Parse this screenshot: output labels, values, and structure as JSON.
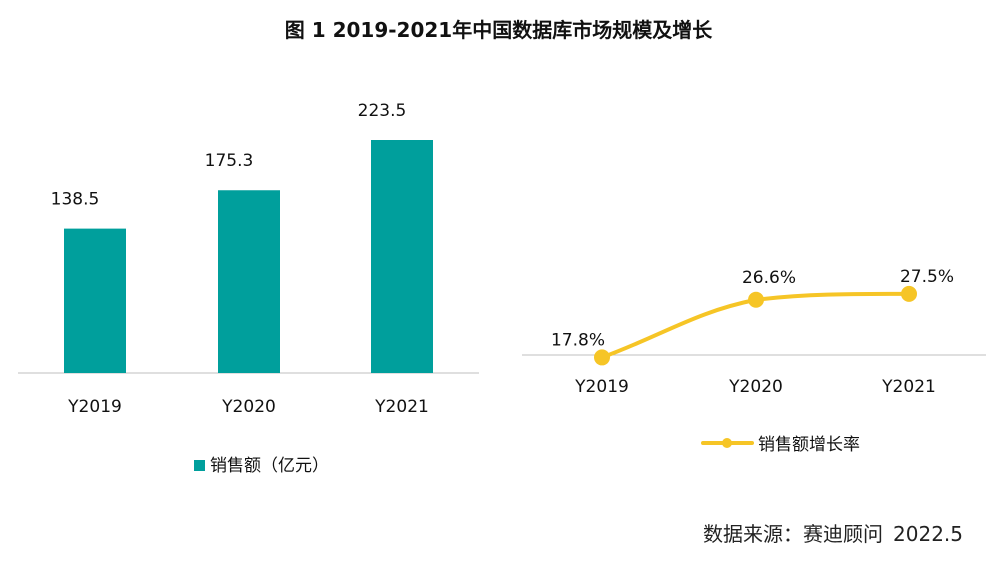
{
  "title": "图 1  2019-2021年中国数据库市场规模及增长",
  "source": {
    "label": "数据来源：赛迪顾问",
    "date": "2022.5"
  },
  "colors": {
    "bar": "#009f9c",
    "line": "#f6c526",
    "axis": "#bfbfbf"
  },
  "chart_data": [
    {
      "type": "bar",
      "categories": [
        "Y2019",
        "Y2020",
        "Y2021"
      ],
      "series": [
        {
          "name": "销售额（亿元）",
          "values": [
            138.5,
            175.3,
            223.5
          ]
        }
      ],
      "data_labels": [
        "138.5",
        "175.3",
        "223.5"
      ],
      "ylim": [
        0,
        223.5
      ],
      "legend": "bottom",
      "grid": false
    },
    {
      "type": "line",
      "categories": [
        "Y2019",
        "Y2020",
        "Y2021"
      ],
      "series": [
        {
          "name": "销售额增长率",
          "values": [
            17.8,
            26.6,
            27.5
          ]
        }
      ],
      "data_labels": [
        "17.8%",
        "26.6%",
        "27.5%"
      ],
      "legend": "bottom",
      "grid": false
    }
  ]
}
